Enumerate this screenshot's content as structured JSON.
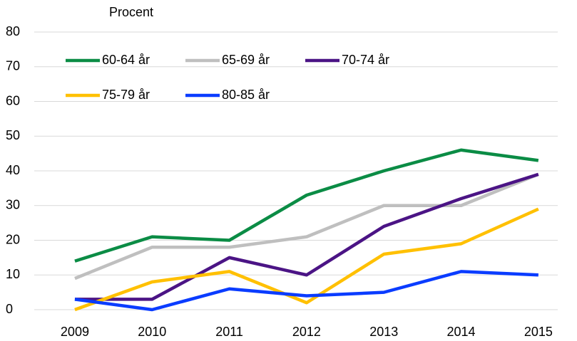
{
  "chart_data": {
    "type": "line",
    "y_label": "Procent",
    "categories": [
      "2009",
      "2010",
      "2011",
      "2012",
      "2013",
      "2014",
      "2015"
    ],
    "series": [
      {
        "name": "60-64 år",
        "color": "#0b8c45",
        "values": [
          14,
          21,
          20,
          33,
          40,
          46,
          43
        ]
      },
      {
        "name": "65-69 år",
        "color": "#bfbfbf",
        "values": [
          9,
          18,
          18,
          21,
          30,
          30,
          39
        ]
      },
      {
        "name": "70-74 år",
        "color": "#4b1485",
        "values": [
          3,
          3,
          15,
          10,
          24,
          32,
          39
        ]
      },
      {
        "name": "75-79 år",
        "color": "#ffc000",
        "values": [
          0,
          8,
          11,
          2,
          16,
          19,
          29
        ]
      },
      {
        "name": "80-85 år",
        "color": "#0a3cff",
        "values": [
          3,
          0,
          6,
          4,
          5,
          11,
          10
        ]
      }
    ],
    "ylim": [
      0,
      80
    ],
    "yticks": [
      0,
      10,
      20,
      30,
      40,
      50,
      60,
      70,
      80
    ],
    "grid": true,
    "legend": "upper left"
  }
}
